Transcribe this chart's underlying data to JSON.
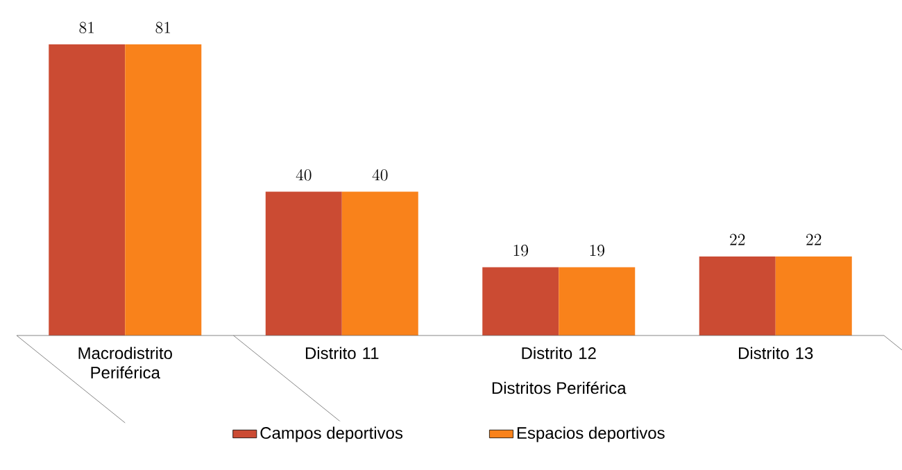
{
  "chart_data": {
    "type": "bar",
    "categories": [
      "Macrodistrito Periférica",
      "Distrito 11",
      "Distrito 12",
      "Distrito 13"
    ],
    "series": [
      {
        "name": "Campos deportivos",
        "color": "#cb4b33",
        "values": [
          81,
          40,
          19,
          22
        ]
      },
      {
        "name": "Espacios deportivos",
        "color": "#f9821b",
        "values": [
          81,
          40,
          19,
          22
        ]
      }
    ],
    "data_labels": true,
    "legend": "bottom",
    "annotations": [
      "Distritos Periférica"
    ]
  }
}
